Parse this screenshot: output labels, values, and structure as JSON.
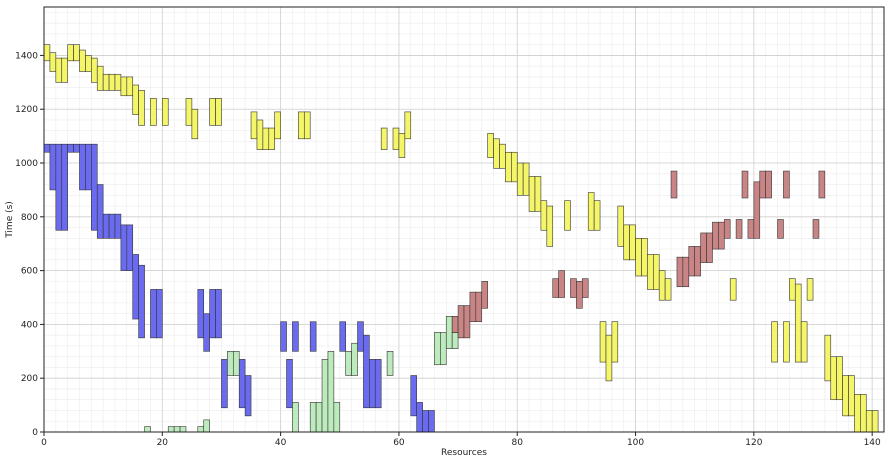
{
  "chart_data": {
    "type": "bar",
    "title": "",
    "xlabel": "Resources",
    "ylabel": "Time (s)",
    "xlim": [
      0,
      142
    ],
    "ylim": [
      0,
      1580
    ],
    "grid": true,
    "x_ticks": [
      0,
      20,
      40,
      60,
      80,
      100,
      120,
      140
    ],
    "y_ticks": [
      0,
      200,
      400,
      600,
      800,
      1000,
      1200,
      1400
    ],
    "colors": {
      "yellow": "#f5f56a",
      "blue": "#6b6bef",
      "green": "#bdebbd",
      "red": "#c98585",
      "edge": "#333333"
    },
    "series": [
      {
        "color": "yellow",
        "bars": [
          [
            0,
            1380,
            1440
          ],
          [
            1,
            1340,
            1410
          ],
          [
            2,
            1300,
            1390
          ],
          [
            3,
            1300,
            1390
          ],
          [
            4,
            1380,
            1440
          ],
          [
            5,
            1380,
            1440
          ],
          [
            6,
            1340,
            1420
          ],
          [
            7,
            1340,
            1400
          ],
          [
            8,
            1300,
            1390
          ],
          [
            9,
            1270,
            1360
          ],
          [
            10,
            1270,
            1330
          ],
          [
            11,
            1270,
            1330
          ],
          [
            12,
            1270,
            1330
          ],
          [
            13,
            1250,
            1320
          ],
          [
            14,
            1250,
            1320
          ],
          [
            15,
            1180,
            1290
          ],
          [
            16,
            1140,
            1270
          ],
          [
            18,
            1140,
            1240
          ],
          [
            20,
            1140,
            1240
          ],
          [
            24,
            1140,
            1240
          ],
          [
            25,
            1090,
            1200
          ],
          [
            28,
            1140,
            1240
          ],
          [
            29,
            1140,
            1240
          ],
          [
            35,
            1090,
            1190
          ],
          [
            36,
            1050,
            1160
          ],
          [
            37,
            1050,
            1130
          ],
          [
            38,
            1050,
            1130
          ],
          [
            39,
            1090,
            1190
          ],
          [
            43,
            1090,
            1190
          ],
          [
            44,
            1090,
            1190
          ],
          [
            57,
            1050,
            1130
          ],
          [
            59,
            1050,
            1130
          ],
          [
            60,
            1020,
            1110
          ],
          [
            61,
            1090,
            1190
          ],
          [
            75,
            1020,
            1110
          ],
          [
            76,
            980,
            1090
          ],
          [
            77,
            980,
            1070
          ],
          [
            78,
            930,
            1040
          ],
          [
            79,
            930,
            1040
          ],
          [
            80,
            880,
            1000
          ],
          [
            81,
            880,
            1000
          ],
          [
            82,
            820,
            950
          ],
          [
            83,
            820,
            950
          ],
          [
            84,
            750,
            860
          ],
          [
            85,
            690,
            840
          ],
          [
            88,
            750,
            860
          ],
          [
            92,
            750,
            890
          ],
          [
            93,
            750,
            860
          ],
          [
            97,
            690,
            840
          ],
          [
            98,
            640,
            770
          ],
          [
            99,
            640,
            770
          ],
          [
            100,
            580,
            720
          ],
          [
            101,
            580,
            720
          ],
          [
            102,
            530,
            660
          ],
          [
            103,
            530,
            660
          ],
          [
            104,
            490,
            600
          ],
          [
            105,
            490,
            570
          ],
          [
            116,
            490,
            570
          ],
          [
            94,
            260,
            410
          ],
          [
            95,
            190,
            360
          ],
          [
            96,
            260,
            410
          ],
          [
            123,
            260,
            410
          ],
          [
            125,
            260,
            410
          ],
          [
            126,
            490,
            570
          ],
          [
            127,
            260,
            550
          ],
          [
            128,
            260,
            410
          ],
          [
            129,
            490,
            570
          ],
          [
            132,
            190,
            360
          ],
          [
            133,
            120,
            280
          ],
          [
            134,
            120,
            280
          ],
          [
            135,
            60,
            210
          ],
          [
            136,
            60,
            210
          ],
          [
            137,
            0,
            140
          ],
          [
            138,
            0,
            140
          ],
          [
            139,
            0,
            80
          ],
          [
            140,
            0,
            80
          ]
        ]
      },
      {
        "color": "blue",
        "bars": [
          [
            0,
            1040,
            1070
          ],
          [
            1,
            900,
            1070
          ],
          [
            2,
            750,
            1070
          ],
          [
            3,
            750,
            1070
          ],
          [
            4,
            1040,
            1070
          ],
          [
            5,
            1040,
            1070
          ],
          [
            6,
            900,
            1070
          ],
          [
            7,
            900,
            1070
          ],
          [
            8,
            750,
            1070
          ],
          [
            9,
            720,
            920
          ],
          [
            10,
            720,
            810
          ],
          [
            11,
            720,
            810
          ],
          [
            12,
            720,
            810
          ],
          [
            13,
            600,
            770
          ],
          [
            14,
            600,
            770
          ],
          [
            15,
            420,
            660
          ],
          [
            16,
            350,
            620
          ],
          [
            18,
            350,
            530
          ],
          [
            19,
            350,
            530
          ],
          [
            26,
            350,
            530
          ],
          [
            27,
            300,
            440
          ],
          [
            28,
            350,
            530
          ],
          [
            29,
            350,
            530
          ],
          [
            30,
            90,
            270
          ],
          [
            33,
            90,
            270
          ],
          [
            34,
            60,
            210
          ],
          [
            40,
            300,
            410
          ],
          [
            41,
            90,
            270
          ],
          [
            42,
            300,
            410
          ],
          [
            45,
            300,
            410
          ],
          [
            50,
            300,
            410
          ],
          [
            53,
            300,
            410
          ],
          [
            54,
            90,
            360
          ],
          [
            55,
            90,
            270
          ],
          [
            56,
            90,
            270
          ],
          [
            62,
            60,
            210
          ],
          [
            63,
            0,
            110
          ],
          [
            64,
            0,
            80
          ],
          [
            65,
            0,
            80
          ]
        ]
      },
      {
        "color": "green",
        "bars": [
          [
            17,
            0,
            20
          ],
          [
            21,
            0,
            20
          ],
          [
            22,
            0,
            20
          ],
          [
            23,
            0,
            20
          ],
          [
            26,
            0,
            20
          ],
          [
            27,
            0,
            45
          ],
          [
            31,
            210,
            300
          ],
          [
            32,
            210,
            300
          ],
          [
            42,
            0,
            110
          ],
          [
            45,
            0,
            110
          ],
          [
            46,
            0,
            110
          ],
          [
            47,
            0,
            270
          ],
          [
            48,
            0,
            300
          ],
          [
            49,
            0,
            110
          ],
          [
            51,
            210,
            300
          ],
          [
            52,
            210,
            330
          ],
          [
            58,
            210,
            300
          ],
          [
            66,
            250,
            370
          ],
          [
            67,
            250,
            370
          ],
          [
            68,
            310,
            430
          ],
          [
            69,
            310,
            370
          ]
        ]
      },
      {
        "color": "red",
        "bars": [
          [
            69,
            370,
            430
          ],
          [
            70,
            350,
            470
          ],
          [
            71,
            350,
            470
          ],
          [
            72,
            410,
            520
          ],
          [
            73,
            410,
            520
          ],
          [
            74,
            460,
            560
          ],
          [
            86,
            500,
            570
          ],
          [
            87,
            500,
            600
          ],
          [
            89,
            500,
            570
          ],
          [
            90,
            460,
            560
          ],
          [
            91,
            500,
            570
          ],
          [
            106,
            870,
            970
          ],
          [
            107,
            540,
            650
          ],
          [
            108,
            540,
            650
          ],
          [
            109,
            580,
            690
          ],
          [
            110,
            580,
            690
          ],
          [
            111,
            630,
            740
          ],
          [
            112,
            630,
            740
          ],
          [
            113,
            680,
            780
          ],
          [
            114,
            680,
            780
          ],
          [
            115,
            720,
            790
          ],
          [
            117,
            720,
            790
          ],
          [
            118,
            870,
            970
          ],
          [
            119,
            720,
            790
          ],
          [
            120,
            720,
            930
          ],
          [
            121,
            870,
            970
          ],
          [
            122,
            870,
            970
          ],
          [
            124,
            720,
            790
          ],
          [
            125,
            870,
            970
          ],
          [
            130,
            720,
            790
          ],
          [
            131,
            870,
            970
          ]
        ]
      }
    ]
  }
}
